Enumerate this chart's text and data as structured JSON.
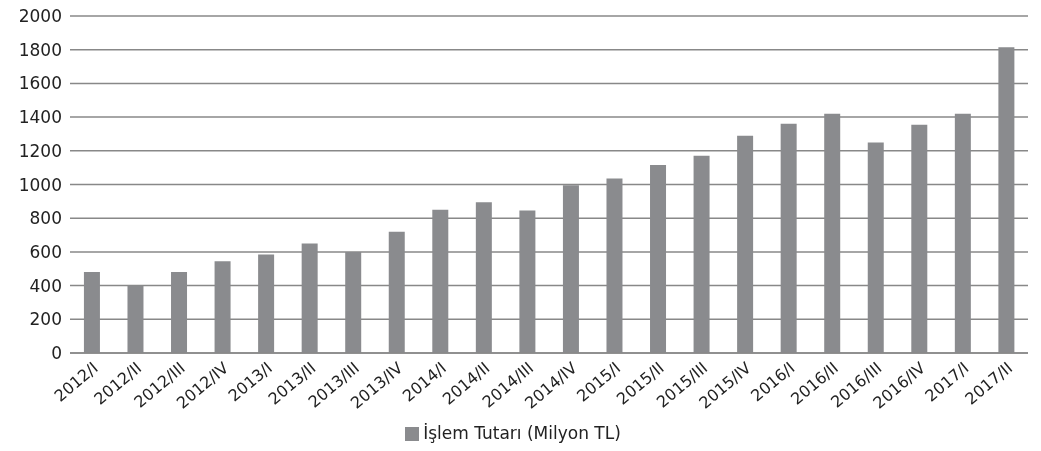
{
  "chart_data": {
    "type": "bar",
    "categories": [
      "2012/I",
      "2012/II",
      "2012/III",
      "2012/IV",
      "2013/I",
      "2013/II",
      "2013/III",
      "2013/IV",
      "2014/I",
      "2014/II",
      "2014/III",
      "2014/IV",
      "2015/I",
      "2015/II",
      "2015/III",
      "2015/IV",
      "2016/I",
      "2016/II",
      "2016/III",
      "2016/IV",
      "2017/I",
      "2017/II"
    ],
    "series": [
      {
        "name": "İşlem Tutarı (Milyon TL)",
        "color": "#8a8b8e",
        "values": [
          480,
          400,
          480,
          545,
          585,
          650,
          600,
          720,
          850,
          895,
          845,
          995,
          1035,
          1115,
          1170,
          1290,
          1360,
          1420,
          1250,
          1355,
          1420,
          1815
        ]
      }
    ],
    "ylim": [
      0,
      2000
    ],
    "yticks": [
      0,
      200,
      400,
      600,
      800,
      1000,
      1200,
      1400,
      1600,
      1800,
      2000
    ],
    "grid": "y",
    "legend": "bottom"
  }
}
